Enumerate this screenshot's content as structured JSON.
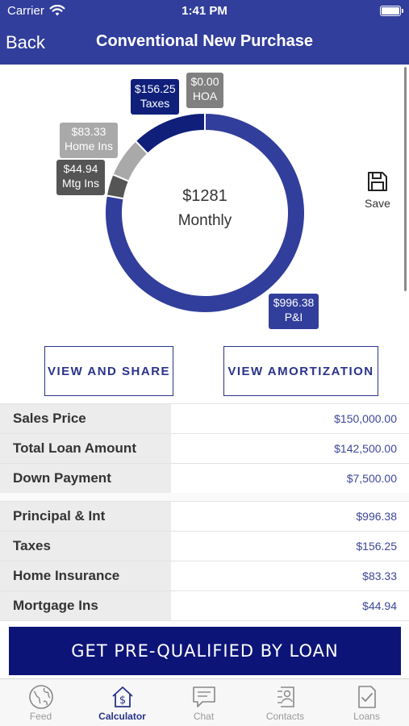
{
  "status_bar": {
    "carrier": "Carrier",
    "time": "1:41 PM"
  },
  "nav": {
    "back": "Back",
    "title": "Conventional New Purchase"
  },
  "chart_data": {
    "type": "pie",
    "style": "donut",
    "categories": [
      "P&I",
      "Mtg Ins",
      "Home Ins",
      "Taxes",
      "HOA"
    ],
    "values": [
      996.38,
      44.94,
      83.33,
      156.25,
      0.0
    ],
    "labels": [
      "$996.38",
      "$44.94",
      "$83.33",
      "$156.25",
      "$0.00"
    ],
    "colors": [
      "#323e9b",
      "#555555",
      "#a9a9a9",
      "#0f1f7a",
      "#808080"
    ],
    "center_amount": "$1281",
    "center_label": "Monthly"
  },
  "tags": {
    "taxes": {
      "amount": "$156.25",
      "name": "Taxes"
    },
    "hoa": {
      "amount": "$0.00",
      "name": "HOA"
    },
    "home_ins": {
      "amount": "$83.33",
      "name": "Home Ins"
    },
    "mtg_ins": {
      "amount": "$44.94",
      "name": "Mtg Ins"
    },
    "pi": {
      "amount": "$996.38",
      "name": "P&I"
    }
  },
  "save": {
    "label": "Save",
    "icon": "floppy-disk-icon"
  },
  "buttons": {
    "view_share": "VIEW AND SHARE",
    "view_amortization": "VIEW AMORTIZATION"
  },
  "loan_summary": [
    {
      "label": "Sales Price",
      "value": "$150,000.00"
    },
    {
      "label": "Total Loan Amount",
      "value": "$142,500.00"
    },
    {
      "label": "Down Payment",
      "value": "$7,500.00"
    }
  ],
  "payment_breakdown": [
    {
      "label": "Principal & Int",
      "value": "$996.38"
    },
    {
      "label": "Taxes",
      "value": "$156.25"
    },
    {
      "label": "Home Insurance",
      "value": "$83.33"
    },
    {
      "label": "Mortgage Ins",
      "value": "$44.94"
    }
  ],
  "cta": {
    "label": "GET PRE-QUALIFIED BY LOAN"
  },
  "tabs": [
    {
      "label": "Feed",
      "icon": "globe-icon"
    },
    {
      "label": "Calculator",
      "icon": "house-dollar-icon"
    },
    {
      "label": "Chat",
      "icon": "chat-bubble-icon"
    },
    {
      "label": "Contacts",
      "icon": "contacts-icon"
    },
    {
      "label": "Loans",
      "icon": "document-check-icon"
    }
  ],
  "colors": {
    "brand": "#323e9b",
    "cta": "#0d1478",
    "value_text": "#3e4799"
  }
}
